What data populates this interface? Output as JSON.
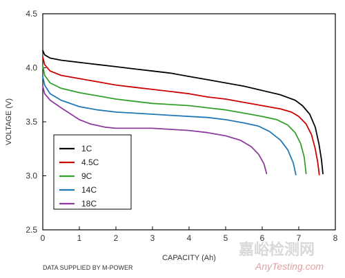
{
  "chart_data": {
    "type": "line",
    "xlabel": "CAPACITY (Ah)",
    "ylabel": "VOLTAGE (V)",
    "xlim": [
      0,
      8
    ],
    "ylim": [
      2.5,
      4.5
    ],
    "x_ticks": [
      "0",
      "1",
      "2",
      "3",
      "4",
      "5",
      "6",
      "7",
      "8"
    ],
    "y_ticks": [
      "2.5",
      "3.0",
      "3.5",
      "4.0",
      "4.5"
    ],
    "grid": false,
    "legend_position": "bottom-left",
    "series": [
      {
        "name": "1C",
        "color": "#000000",
        "points": [
          [
            0,
            4.16
          ],
          [
            0.05,
            4.12
          ],
          [
            0.2,
            4.09
          ],
          [
            0.5,
            4.07
          ],
          [
            1,
            4.05
          ],
          [
            1.5,
            4.03
          ],
          [
            2,
            4.01
          ],
          [
            2.5,
            3.99
          ],
          [
            3,
            3.97
          ],
          [
            3.5,
            3.95
          ],
          [
            4,
            3.92
          ],
          [
            4.5,
            3.89
          ],
          [
            5,
            3.86
          ],
          [
            5.5,
            3.83
          ],
          [
            6,
            3.79
          ],
          [
            6.5,
            3.75
          ],
          [
            6.9,
            3.7
          ],
          [
            7.1,
            3.65
          ],
          [
            7.3,
            3.57
          ],
          [
            7.45,
            3.45
          ],
          [
            7.55,
            3.3
          ],
          [
            7.62,
            3.15
          ],
          [
            7.66,
            3.02
          ]
        ]
      },
      {
        "name": "4.5C",
        "color": "#cc0000",
        "points": [
          [
            0,
            4.1
          ],
          [
            0.05,
            4.03
          ],
          [
            0.2,
            3.97
          ],
          [
            0.5,
            3.93
          ],
          [
            1,
            3.9
          ],
          [
            1.5,
            3.87
          ],
          [
            2,
            3.84
          ],
          [
            2.5,
            3.82
          ],
          [
            3,
            3.8
          ],
          [
            3.5,
            3.78
          ],
          [
            4,
            3.76
          ],
          [
            4.5,
            3.73
          ],
          [
            5,
            3.71
          ],
          [
            5.5,
            3.68
          ],
          [
            6,
            3.65
          ],
          [
            6.5,
            3.62
          ],
          [
            6.8,
            3.59
          ],
          [
            7,
            3.55
          ],
          [
            7.2,
            3.48
          ],
          [
            7.35,
            3.38
          ],
          [
            7.45,
            3.25
          ],
          [
            7.52,
            3.12
          ],
          [
            7.56,
            3.01
          ]
        ]
      },
      {
        "name": "9C",
        "color": "#33a02c",
        "points": [
          [
            0,
            4.02
          ],
          [
            0.05,
            3.93
          ],
          [
            0.2,
            3.86
          ],
          [
            0.5,
            3.81
          ],
          [
            1,
            3.77
          ],
          [
            1.5,
            3.74
          ],
          [
            2,
            3.71
          ],
          [
            2.5,
            3.69
          ],
          [
            3,
            3.67
          ],
          [
            3.5,
            3.66
          ],
          [
            4,
            3.65
          ],
          [
            4.5,
            3.63
          ],
          [
            5,
            3.61
          ],
          [
            5.5,
            3.58
          ],
          [
            6,
            3.55
          ],
          [
            6.4,
            3.52
          ],
          [
            6.7,
            3.47
          ],
          [
            6.9,
            3.4
          ],
          [
            7.05,
            3.3
          ],
          [
            7.15,
            3.17
          ],
          [
            7.2,
            3.02
          ]
        ]
      },
      {
        "name": "14C",
        "color": "#1f78b4",
        "points": [
          [
            0,
            3.92
          ],
          [
            0.05,
            3.84
          ],
          [
            0.2,
            3.76
          ],
          [
            0.5,
            3.7
          ],
          [
            1,
            3.64
          ],
          [
            1.5,
            3.61
          ],
          [
            2,
            3.59
          ],
          [
            2.5,
            3.58
          ],
          [
            3,
            3.57
          ],
          [
            3.5,
            3.56
          ],
          [
            4,
            3.55
          ],
          [
            4.5,
            3.54
          ],
          [
            5,
            3.52
          ],
          [
            5.5,
            3.49
          ],
          [
            5.9,
            3.46
          ],
          [
            6.2,
            3.41
          ],
          [
            6.5,
            3.33
          ],
          [
            6.7,
            3.24
          ],
          [
            6.85,
            3.12
          ],
          [
            6.92,
            3.01
          ]
        ]
      },
      {
        "name": "18C",
        "color": "#8e3a9d",
        "points": [
          [
            0,
            3.83
          ],
          [
            0.05,
            3.76
          ],
          [
            0.2,
            3.7
          ],
          [
            0.5,
            3.63
          ],
          [
            1,
            3.52
          ],
          [
            1.3,
            3.48
          ],
          [
            1.7,
            3.45
          ],
          [
            2,
            3.44
          ],
          [
            2.5,
            3.44
          ],
          [
            3,
            3.44
          ],
          [
            3.5,
            3.43
          ],
          [
            4,
            3.42
          ],
          [
            4.5,
            3.4
          ],
          [
            5,
            3.37
          ],
          [
            5.4,
            3.33
          ],
          [
            5.7,
            3.27
          ],
          [
            5.9,
            3.2
          ],
          [
            6.05,
            3.11
          ],
          [
            6.12,
            3.02
          ]
        ]
      }
    ]
  },
  "footnote": "DATA SUPPLIED BY M-POWER",
  "watermark": {
    "cn": "嘉峪检测网",
    "en": "AnyTesting.com"
  }
}
